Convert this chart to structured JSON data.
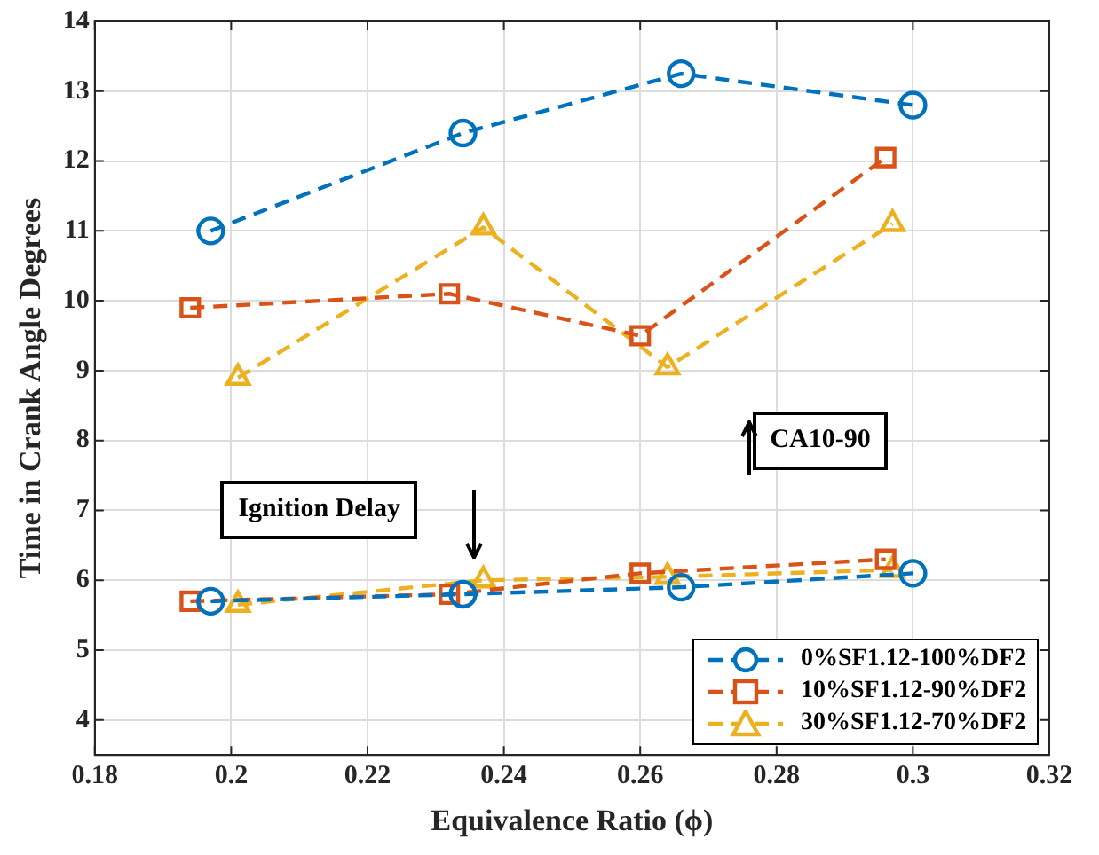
{
  "chart_data": {
    "type": "line",
    "xlabel": "Equivalence Ratio (ϕ)",
    "ylabel": "Time in Crank Angle Degrees",
    "xlim": [
      0.18,
      0.32
    ],
    "xticks": [
      0.18,
      0.2,
      0.22,
      0.24,
      0.26,
      0.28,
      0.3,
      0.32
    ],
    "ylim": [
      3.5,
      14
    ],
    "yticks": [
      4,
      5,
      6,
      7,
      8,
      9,
      10,
      11,
      12,
      13,
      14
    ],
    "grid": true,
    "legend": "bottom right",
    "line_style": "dashed",
    "annotations": [
      "CA10-90",
      "Ignition Delay"
    ],
    "series": [
      {
        "name": "0%SF1.12-100%DF2",
        "color": "#0072bd",
        "marker": "circle",
        "x": [
          0.197,
          0.234,
          0.266,
          0.3
        ],
        "values": [
          11.0,
          12.4,
          13.25,
          12.8
        ]
      },
      {
        "name": "10%SF1.12-90%DF2",
        "color": "#d95319",
        "marker": "square",
        "x": [
          0.194,
          0.232,
          0.26,
          0.296
        ],
        "values": [
          9.9,
          10.1,
          9.5,
          12.05
        ]
      },
      {
        "name": "30%SF1.12-70%DF2",
        "color": "#edb120",
        "marker": "triangle",
        "x": [
          0.201,
          0.237,
          0.264,
          0.297
        ],
        "values": [
          8.9,
          11.05,
          9.05,
          11.1
        ]
      },
      {
        "color": "#0072bd",
        "marker": "circle",
        "x": [
          0.197,
          0.234,
          0.266,
          0.3
        ],
        "values": [
          5.7,
          5.8,
          5.9,
          6.1
        ]
      },
      {
        "color": "#d95319",
        "marker": "square",
        "x": [
          0.194,
          0.232,
          0.26,
          0.296
        ],
        "values": [
          5.7,
          5.8,
          6.1,
          6.3
        ]
      },
      {
        "color": "#edb120",
        "marker": "triangle",
        "x": [
          0.201,
          0.237,
          0.264,
          0.297
        ],
        "values": [
          5.65,
          6.0,
          6.05,
          6.15
        ]
      }
    ]
  }
}
